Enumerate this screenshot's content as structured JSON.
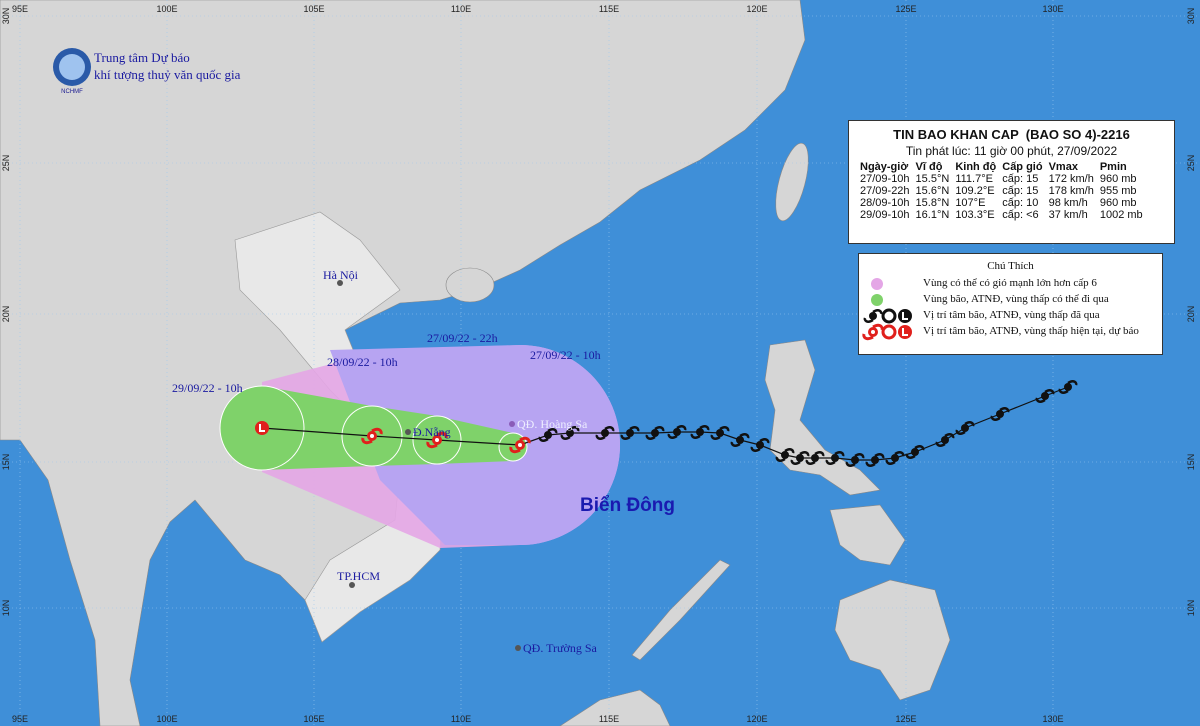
{
  "header": {
    "org_line1": "Trung tâm Dự báo",
    "org_line2": "khí tượng thuỷ văn quốc gia",
    "logo": "NCHMF"
  },
  "axes": {
    "lon_labels": [
      "95E",
      "100E",
      "105E",
      "110E",
      "115E",
      "120E",
      "125E",
      "130E"
    ],
    "lat_labels": [
      "30N",
      "25N",
      "20N",
      "15N",
      "10N"
    ]
  },
  "bulletin": {
    "title": "TIN BAO KHAN CAP  (BAO SO 4)-2216",
    "issued": "Tin phát lúc: 11 giờ 00 phút, 27/09/2022",
    "columns": [
      "Ngày-giờ",
      "Vĩ độ",
      "Kinh độ",
      "Cấp gió",
      "Vmax",
      "Pmin"
    ],
    "rows": [
      [
        "27/09-10h",
        "15.5°N",
        "111.7°E",
        "cấp: 15",
        "172 km/h",
        "960 mb"
      ],
      [
        "27/09-22h",
        "15.6°N",
        "109.2°E",
        "cấp: 15",
        "178 km/h",
        "955 mb"
      ],
      [
        "28/09-10h",
        "15.8°N",
        "107°E",
        "cấp: 10",
        "98 km/h",
        "960 mb"
      ],
      [
        "29/09-10h",
        "16.1°N",
        "103.3°E",
        "cấp: <6",
        "37 km/h",
        "1002 mb"
      ]
    ]
  },
  "legend": {
    "title": "Chú Thích",
    "items": [
      "Vùng có thể có gió mạnh lớn hơn cấp 6",
      "Vùng bão, ATNĐ, vùng thấp có thể đi qua",
      "Vị trí tâm bão, ATNĐ, vùng thấp đã qua",
      "Vị trí tâm bão, ATNĐ, vùng thấp hiện tại, dự báo"
    ]
  },
  "map_labels": {
    "hanoi": "Hà Nội",
    "danang": "Đ.Nẵng",
    "hoangsa": "QĐ. Hoàng Sa",
    "hcm": "TP.HCM",
    "truongsa": "QĐ. Trường Sa",
    "sea": "Biển Đông",
    "time_now": "27/09/22 - 10h",
    "time_22h": "27/09/22 - 22h",
    "time_28": "28/09/22 - 10h",
    "time_29": "29/09/22 - 10h"
  }
}
